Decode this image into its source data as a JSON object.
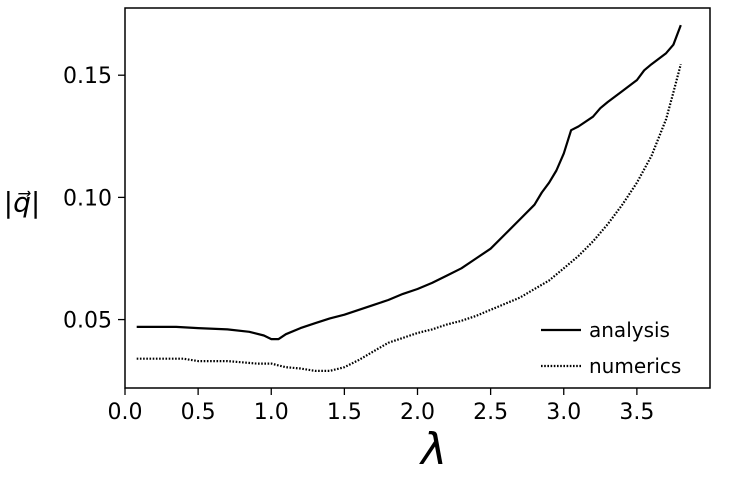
{
  "chart_data": {
    "type": "line",
    "title": "",
    "xlabel": "λ",
    "ylabel": "|q⃗|",
    "xlim": [
      0.0,
      4.0
    ],
    "ylim": [
      0.022,
      0.1775
    ],
    "xticks": [
      {
        "value": 0.0,
        "label": "0.0"
      },
      {
        "value": 0.5,
        "label": "0.5"
      },
      {
        "value": 1.0,
        "label": "1.0"
      },
      {
        "value": 1.5,
        "label": "1.5"
      },
      {
        "value": 2.0,
        "label": "2.0"
      },
      {
        "value": 2.5,
        "label": "2.5"
      },
      {
        "value": 3.0,
        "label": "3.0"
      },
      {
        "value": 3.5,
        "label": "3.5"
      }
    ],
    "yticks": [
      {
        "value": 0.05,
        "label": "0.05"
      },
      {
        "value": 0.1,
        "label": "0.10"
      },
      {
        "value": 0.15,
        "label": "0.15"
      }
    ],
    "grid": false,
    "legend_position": "bottom-right",
    "series": [
      {
        "name": "analysis",
        "style": "solid",
        "color": "#000000",
        "x": [
          0.08,
          0.2,
          0.35,
          0.5,
          0.7,
          0.85,
          0.95,
          1.0,
          1.05,
          1.1,
          1.2,
          1.3,
          1.4,
          1.5,
          1.6,
          1.7,
          1.8,
          1.9,
          2.0,
          2.1,
          2.2,
          2.3,
          2.4,
          2.5,
          2.6,
          2.7,
          2.8,
          2.85,
          2.9,
          2.95,
          3.0,
          3.05,
          3.1,
          3.2,
          3.25,
          3.3,
          3.4,
          3.5,
          3.55,
          3.6,
          3.7,
          3.75,
          3.8
        ],
        "y": [
          0.047,
          0.047,
          0.047,
          0.0465,
          0.046,
          0.045,
          0.0435,
          0.042,
          0.042,
          0.044,
          0.0465,
          0.0485,
          0.0505,
          0.052,
          0.054,
          0.056,
          0.058,
          0.0605,
          0.0625,
          0.065,
          0.068,
          0.071,
          0.075,
          0.079,
          0.085,
          0.091,
          0.097,
          0.102,
          0.106,
          0.111,
          0.118,
          0.1275,
          0.129,
          0.133,
          0.1365,
          0.139,
          0.1435,
          0.148,
          0.152,
          0.1545,
          0.159,
          0.1625,
          0.1705
        ]
      },
      {
        "name": "numerics",
        "style": "dotted",
        "color": "#000000",
        "x": [
          0.08,
          0.2,
          0.3,
          0.4,
          0.5,
          0.6,
          0.7,
          0.8,
          0.9,
          1.0,
          1.1,
          1.2,
          1.3,
          1.4,
          1.5,
          1.6,
          1.7,
          1.8,
          1.9,
          2.0,
          2.1,
          2.2,
          2.3,
          2.4,
          2.5,
          2.6,
          2.7,
          2.8,
          2.9,
          3.0,
          3.1,
          3.2,
          3.3,
          3.4,
          3.5,
          3.6,
          3.7,
          3.75,
          3.8
        ],
        "y": [
          0.034,
          0.034,
          0.034,
          0.034,
          0.033,
          0.033,
          0.033,
          0.0325,
          0.032,
          0.032,
          0.0305,
          0.03,
          0.029,
          0.029,
          0.0305,
          0.0335,
          0.037,
          0.0405,
          0.0425,
          0.0445,
          0.046,
          0.048,
          0.0495,
          0.0515,
          0.054,
          0.0565,
          0.059,
          0.0625,
          0.066,
          0.071,
          0.076,
          0.082,
          0.089,
          0.097,
          0.106,
          0.117,
          0.132,
          0.143,
          0.1545
        ]
      }
    ]
  }
}
